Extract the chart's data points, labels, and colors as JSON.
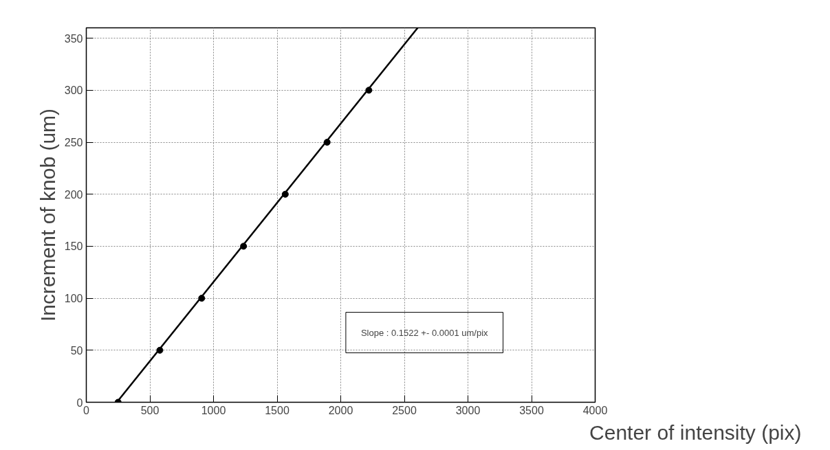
{
  "chart_data": {
    "type": "scatter",
    "xlabel": "Center of intensity (pix)",
    "ylabel": "Increment of knob (um)",
    "x": [
      250,
      578,
      907,
      1236,
      1564,
      1893,
      2221
    ],
    "series": [
      {
        "color": "#000000",
        "values": [
          0,
          50,
          100,
          150,
          200,
          250,
          300
        ],
        "marker": "circle"
      },
      {
        "type": "line",
        "color": "#000000",
        "x": [
          240,
          2605
        ],
        "values": [
          0,
          360
        ],
        "marker": "none",
        "line_style": "solid"
      }
    ],
    "xlim": [
      0,
      4000
    ],
    "ylim": [
      0,
      360
    ],
    "xticks": [
      0,
      500,
      1000,
      1500,
      2000,
      2500,
      3000,
      3500,
      4000
    ],
    "yticks": [
      0,
      50,
      100,
      150,
      200,
      250,
      300,
      350
    ],
    "grid": true,
    "annotations": [
      "Slope : 0.1522 +- 0.0001 um/pix"
    ]
  }
}
